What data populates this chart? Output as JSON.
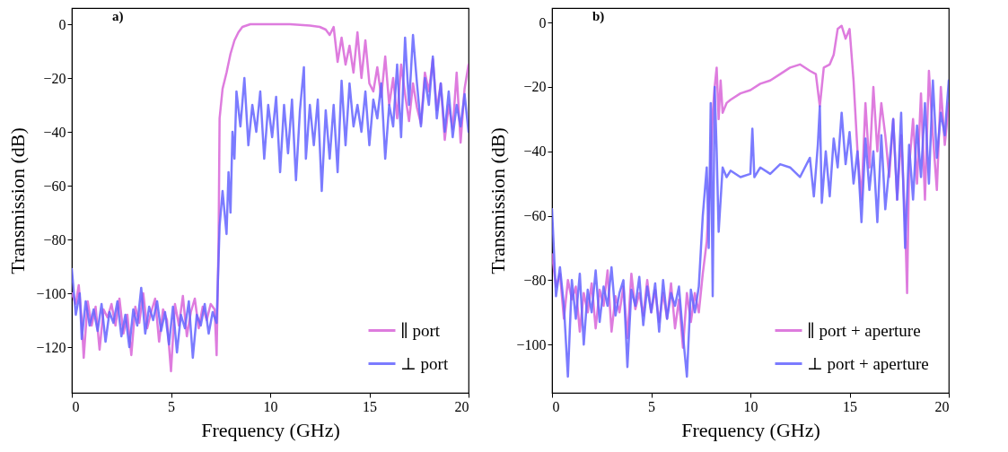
{
  "chart_data": [
    {
      "type": "line",
      "title": "a)",
      "xlabel": "Frequency (GHz)",
      "ylabel": "Transmission (dB)",
      "xlim": [
        0,
        20
      ],
      "xticks": [
        0,
        5,
        10,
        15,
        20
      ],
      "ylim": [
        -137,
        6
      ],
      "yticks": [
        -120,
        -100,
        -80,
        -60,
        -40,
        -20,
        0
      ],
      "grid": false,
      "legend": "bottom right",
      "series": [
        {
          "name": "∥ port",
          "color": "#d865d8",
          "x": [
            0,
            0.2,
            0.35,
            0.5,
            0.6,
            0.8,
            1.0,
            1.2,
            1.4,
            1.6,
            1.8,
            2.0,
            2.2,
            2.4,
            2.6,
            2.8,
            3.0,
            3.2,
            3.4,
            3.6,
            3.8,
            4.0,
            4.2,
            4.4,
            4.6,
            4.8,
            5.0,
            5.2,
            5.4,
            5.6,
            5.8,
            6.0,
            6.2,
            6.4,
            6.6,
            6.8,
            7.0,
            7.2,
            7.3,
            7.4,
            7.45,
            7.6,
            7.8,
            8.0,
            8.2,
            8.4,
            8.6,
            9.0,
            10,
            11,
            12,
            12.5,
            12.8,
            13.0,
            13.2,
            13.4,
            13.6,
            13.8,
            14.0,
            14.2,
            14.4,
            14.6,
            14.8,
            15.0,
            15.2,
            15.4,
            15.6,
            15.8,
            16.0,
            16.2,
            16.4,
            16.6,
            16.8,
            17.0,
            17.2,
            17.4,
            17.6,
            17.8,
            18.0,
            18.2,
            18.4,
            18.6,
            18.8,
            19.0,
            19.2,
            19.4,
            19.6,
            19.8,
            20
          ],
          "values": [
            -100,
            -104,
            -97,
            -110,
            -124,
            -103,
            -112,
            -105,
            -121,
            -106,
            -109,
            -104,
            -112,
            -102,
            -115,
            -108,
            -123,
            -105,
            -111,
            -100,
            -113,
            -107,
            -102,
            -118,
            -106,
            -110,
            -129,
            -104,
            -112,
            -101,
            -116,
            -107,
            -102,
            -113,
            -105,
            -110,
            -104,
            -106,
            -123,
            -80,
            -35,
            -24,
            -18,
            -11,
            -6,
            -3,
            -1,
            0,
            0,
            0,
            -0.5,
            -1,
            -2,
            -4,
            -1,
            -14,
            -5,
            -15,
            -8,
            -18,
            -3,
            -20,
            -6,
            -22,
            -25,
            -16,
            -27,
            -12,
            -30,
            -20,
            -35,
            -15,
            -26,
            -36,
            -22,
            -31,
            -37,
            -18,
            -25,
            -13,
            -32,
            -22,
            -43,
            -30,
            -39,
            -18,
            -44,
            -24,
            -15
          ]
        },
        {
          "name": "⊥ port",
          "color": "#6464ff",
          "x": [
            0,
            0.2,
            0.4,
            0.5,
            0.7,
            0.9,
            1.1,
            1.3,
            1.5,
            1.7,
            1.9,
            2.1,
            2.3,
            2.5,
            2.7,
            2.9,
            3.1,
            3.3,
            3.5,
            3.7,
            3.9,
            4.1,
            4.3,
            4.5,
            4.7,
            4.9,
            5.1,
            5.3,
            5.5,
            5.7,
            5.9,
            6.1,
            6.3,
            6.5,
            6.7,
            6.9,
            7.1,
            7.3,
            7.45,
            7.6,
            7.8,
            7.9,
            8.0,
            8.1,
            8.2,
            8.3,
            8.5,
            8.7,
            8.9,
            9.1,
            9.3,
            9.5,
            9.7,
            9.9,
            10.1,
            10.3,
            10.5,
            10.7,
            10.9,
            11.1,
            11.3,
            11.5,
            11.7,
            11.8,
            12.0,
            12.2,
            12.4,
            12.6,
            12.8,
            13.0,
            13.2,
            13.4,
            13.6,
            13.8,
            14.0,
            14.2,
            14.4,
            14.6,
            14.8,
            15.0,
            15.2,
            15.4,
            15.6,
            15.8,
            16.0,
            16.2,
            16.4,
            16.6,
            16.8,
            17.0,
            17.2,
            17.4,
            17.6,
            17.8,
            18.0,
            18.2,
            18.4,
            18.6,
            18.8,
            19.0,
            19.2,
            19.4,
            19.6,
            19.8,
            20
          ],
          "values": [
            -91,
            -108,
            -100,
            -117,
            -103,
            -112,
            -106,
            -114,
            -104,
            -118,
            -107,
            -111,
            -103,
            -116,
            -108,
            -120,
            -106,
            -112,
            -98,
            -115,
            -105,
            -110,
            -103,
            -114,
            -107,
            -119,
            -105,
            -122,
            -108,
            -113,
            -103,
            -124,
            -108,
            -112,
            -104,
            -115,
            -107,
            -111,
            -75,
            -62,
            -78,
            -55,
            -70,
            -40,
            -50,
            -25,
            -38,
            -20,
            -45,
            -30,
            -40,
            -25,
            -50,
            -30,
            -42,
            -27,
            -55,
            -30,
            -48,
            -28,
            -58,
            -32,
            -16,
            -50,
            -30,
            -45,
            -28,
            -62,
            -32,
            -50,
            -30,
            -55,
            -21,
            -45,
            -22,
            -38,
            -30,
            -40,
            -25,
            -45,
            -28,
            -35,
            -22,
            -50,
            -30,
            -38,
            -15,
            -42,
            -5,
            -30,
            -4,
            -22,
            -38,
            -20,
            -30,
            -12,
            -35,
            -22,
            -40,
            -25,
            -42,
            -30,
            -38,
            -26,
            -40
          ]
        }
      ]
    },
    {
      "type": "line",
      "title": "b)",
      "xlabel": "Frequency (GHz)",
      "ylabel": "Transmission (dB)",
      "xlim": [
        0,
        20
      ],
      "xticks": [
        0,
        5,
        10,
        15,
        20
      ],
      "ylim": [
        -115,
        4.5
      ],
      "yticks": [
        -100,
        -80,
        -60,
        -40,
        -20,
        0
      ],
      "grid": false,
      "legend": "bottom right",
      "series": [
        {
          "name": "∥ port + aperture",
          "color": "#d865d8",
          "x": [
            0,
            0.2,
            0.4,
            0.6,
            0.8,
            1.0,
            1.2,
            1.4,
            1.6,
            1.8,
            2.0,
            2.2,
            2.4,
            2.6,
            2.8,
            3.0,
            3.2,
            3.4,
            3.6,
            3.8,
            4.0,
            4.2,
            4.4,
            4.6,
            4.8,
            5.0,
            5.2,
            5.4,
            5.6,
            5.8,
            6.0,
            6.2,
            6.4,
            6.6,
            6.8,
            7.0,
            7.2,
            7.4,
            7.6,
            7.8,
            8.0,
            8.1,
            8.2,
            8.3,
            8.4,
            8.5,
            8.6,
            8.8,
            9.0,
            9.5,
            10,
            10.5,
            11,
            11.5,
            12,
            12.5,
            13,
            13.3,
            13.5,
            13.7,
            14,
            14.2,
            14.4,
            14.6,
            14.8,
            15.0,
            15.2,
            15.4,
            15.6,
            15.8,
            16.0,
            16.2,
            16.4,
            16.6,
            16.8,
            17.0,
            17.2,
            17.4,
            17.6,
            17.8,
            17.9,
            18.0,
            18.2,
            18.4,
            18.6,
            18.8,
            19.0,
            19.2,
            19.4,
            19.6,
            19.8,
            20
          ],
          "values": [
            -72,
            -82,
            -78,
            -92,
            -80,
            -86,
            -82,
            -96,
            -84,
            -90,
            -81,
            -95,
            -83,
            -88,
            -77,
            -96,
            -85,
            -90,
            -82,
            -98,
            -78,
            -89,
            -84,
            -91,
            -80,
            -90,
            -83,
            -93,
            -84,
            -92,
            -81,
            -95,
            -86,
            -101,
            -84,
            -93,
            -84,
            -90,
            -78,
            -68,
            -45,
            -28,
            -20,
            -14,
            -30,
            -18,
            -28,
            -25,
            -24,
            -22,
            -21,
            -19,
            -18,
            -16,
            -14,
            -13,
            -15,
            -16,
            -26,
            -14,
            -13,
            -10,
            -2,
            -1,
            -5,
            -2,
            -18,
            -40,
            -55,
            -25,
            -45,
            -20,
            -40,
            -25,
            -35,
            -48,
            -30,
            -55,
            -35,
            -62,
            -84,
            -45,
            -30,
            -50,
            -22,
            -55,
            -15,
            -35,
            -52,
            -20,
            -38,
            -25
          ]
        },
        {
          "name": "⊥ port + aperture",
          "color": "#6464ff",
          "x": [
            0,
            0.2,
            0.4,
            0.6,
            0.8,
            1.0,
            1.2,
            1.4,
            1.6,
            1.8,
            2.0,
            2.2,
            2.4,
            2.6,
            2.8,
            3.0,
            3.2,
            3.4,
            3.6,
            3.8,
            4.0,
            4.2,
            4.4,
            4.6,
            4.8,
            5.0,
            5.2,
            5.4,
            5.6,
            5.8,
            6.0,
            6.2,
            6.4,
            6.6,
            6.8,
            7.0,
            7.2,
            7.4,
            7.6,
            7.8,
            7.9,
            8.0,
            8.1,
            8.2,
            8.3,
            8.4,
            8.6,
            8.8,
            9.0,
            9.5,
            10.0,
            10.1,
            10.2,
            10.5,
            11,
            11.5,
            12,
            12.5,
            13,
            13.2,
            13.4,
            13.5,
            13.6,
            13.8,
            14.0,
            14.2,
            14.4,
            14.6,
            14.8,
            15.0,
            15.2,
            15.4,
            15.6,
            15.8,
            16.0,
            16.2,
            16.4,
            16.6,
            16.8,
            17.0,
            17.2,
            17.4,
            17.6,
            17.8,
            18.0,
            18.2,
            18.4,
            18.6,
            18.8,
            19.0,
            19.2,
            19.4,
            19.6,
            19.8,
            20
          ],
          "values": [
            -58,
            -85,
            -76,
            -88,
            -110,
            -80,
            -92,
            -78,
            -100,
            -83,
            -90,
            -77,
            -93,
            -82,
            -88,
            -76,
            -91,
            -84,
            -80,
            -107,
            -83,
            -88,
            -79,
            -94,
            -82,
            -90,
            -81,
            -96,
            -80,
            -92,
            -84,
            -88,
            -82,
            -97,
            -110,
            -83,
            -90,
            -82,
            -60,
            -45,
            -70,
            -25,
            -85,
            -20,
            -40,
            -65,
            -45,
            -48,
            -46,
            -48,
            -47,
            -33,
            -48,
            -45,
            -47,
            -44,
            -45,
            -48,
            -42,
            -54,
            -38,
            -26,
            -56,
            -40,
            -54,
            -36,
            -45,
            -28,
            -44,
            -34,
            -50,
            -40,
            -62,
            -36,
            -52,
            -40,
            -62,
            -35,
            -58,
            -45,
            -30,
            -55,
            -28,
            -70,
            -38,
            -55,
            -32,
            -48,
            -25,
            -50,
            -18,
            -42,
            -28,
            -35,
            -18
          ]
        }
      ]
    }
  ]
}
